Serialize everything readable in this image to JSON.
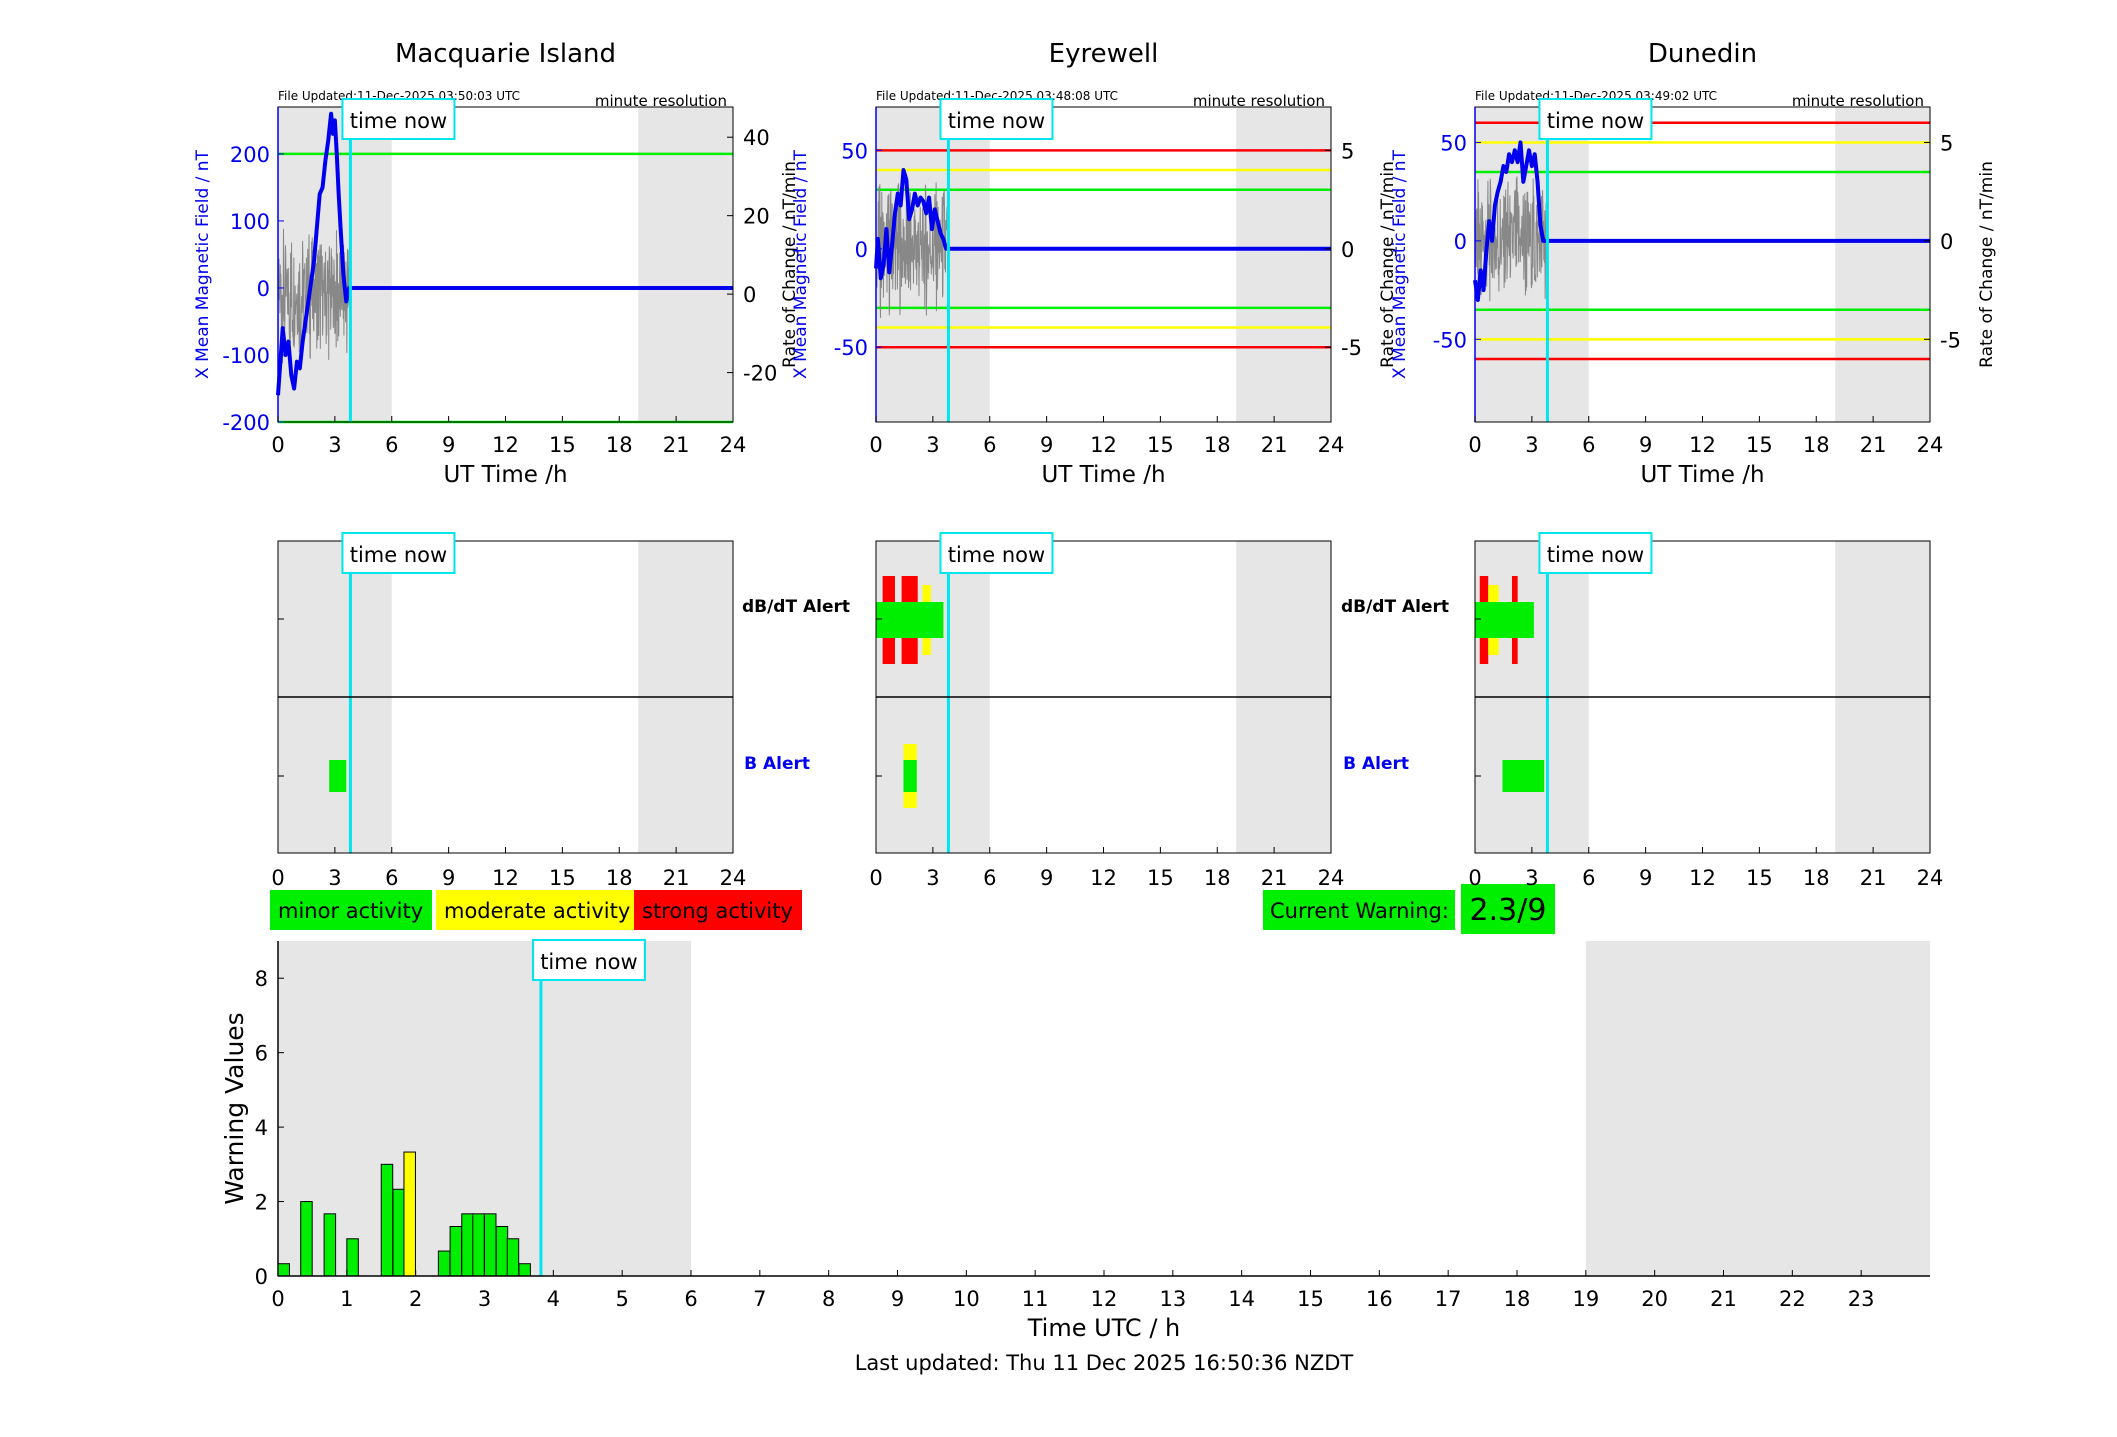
{
  "colors": {
    "green": "#00ee00",
    "yellow": "#ffff00",
    "red": "#ff0000",
    "blue": "#0000ee",
    "cyan": "#00e5ee",
    "shade": "#e6e6e6"
  },
  "time_now_label": "time now",
  "time_now_hour": 3.82,
  "shading": {
    "night_end": 6,
    "night_start": 19
  },
  "stations": [
    {
      "id": "macquarie",
      "title": "Macquarie Island",
      "file_updated": "File Updated:11-Dec-2025 03:50:03 UTC",
      "resolution": "minute resolution",
      "ylabel_left": "X Mean Magnetic Field / nT",
      "ylabel_right": "Rate of Change / nT/min",
      "xlabel": "UT Time /h",
      "left_ticks": [
        "200",
        "100",
        "0",
        "-100",
        "-200"
      ],
      "right_ticks": [
        "40",
        "20",
        "0",
        "-20"
      ],
      "x_ticks": [
        "0",
        "3",
        "6",
        "9",
        "12",
        "15",
        "18",
        "21",
        "24"
      ],
      "alerts": {
        "dbdt": [],
        "b": [
          {
            "t0": 2.7,
            "t1": 3.6,
            "color": "green"
          }
        ]
      }
    },
    {
      "id": "eyrewell",
      "title": "Eyrewell",
      "file_updated": "File Updated:11-Dec-2025 03:48:08 UTC",
      "resolution": "minute resolution",
      "ylabel_left": "X Mean Magnetic Field / nT",
      "ylabel_right": "Rate of Change / nT/min",
      "xlabel": "UT Time /h",
      "left_ticks": [
        "50",
        "0",
        "-50"
      ],
      "right_ticks": [
        "5",
        "0",
        "-5"
      ],
      "x_ticks": [
        "0",
        "3",
        "6",
        "9",
        "12",
        "15",
        "18",
        "21",
        "24"
      ],
      "alerts": {
        "dbdt": [
          {
            "t0": 0.35,
            "t1": 1.0,
            "color": "red"
          },
          {
            "t0": 1.35,
            "t1": 2.2,
            "color": "red"
          },
          {
            "t0": 2.45,
            "t1": 2.9,
            "color": "yellow"
          },
          {
            "t0": 3.15,
            "t1": 3.55,
            "color": "green"
          }
        ],
        "b": [
          {
            "t0": 1.45,
            "t1": 2.15,
            "color": "yellow"
          }
        ]
      }
    },
    {
      "id": "dunedin",
      "title": "Dunedin",
      "file_updated": "File Updated:11-Dec-2025 03:49:02 UTC",
      "resolution": "minute resolution",
      "ylabel_left": "X Mean Magnetic Field / nT",
      "ylabel_right": "Rate of Change / nT/min",
      "xlabel": "UT Time /h",
      "left_ticks": [
        "50",
        "0",
        "-50"
      ],
      "right_ticks": [
        "5",
        "0",
        "-5"
      ],
      "x_ticks": [
        "0",
        "3",
        "6",
        "9",
        "12",
        "15",
        "18",
        "21",
        "24"
      ],
      "alerts": {
        "dbdt": [
          {
            "t0": 0.25,
            "t1": 0.7,
            "color": "red"
          },
          {
            "t0": 0.7,
            "t1": 1.25,
            "color": "yellow"
          },
          {
            "t0": 1.25,
            "t1": 1.95,
            "color": "green"
          },
          {
            "t0": 1.95,
            "t1": 2.25,
            "color": "red"
          },
          {
            "t0": 2.5,
            "t1": 3.1,
            "color": "green"
          }
        ],
        "b": [
          {
            "t0": 1.45,
            "t1": 3.65,
            "color": "green"
          }
        ]
      }
    }
  ],
  "alert_labels": {
    "dbdt": "dB/dT Alert",
    "b": "B Alert"
  },
  "legend": [
    {
      "label": "minor activity",
      "color": "green"
    },
    {
      "label": "moderate activity",
      "color": "yellow"
    },
    {
      "label": "strong activity",
      "color": "red"
    }
  ],
  "current_warning": {
    "label": "Current Warning:",
    "value": "2.3/9"
  },
  "chart_data": {
    "type": "bar",
    "ylabel": "Warning Values",
    "xlabel": "Time UTC / h",
    "ylim": [
      0,
      9
    ],
    "xlim": [
      0,
      24
    ],
    "y_ticks": [
      "0",
      "2",
      "4",
      "6",
      "8"
    ],
    "x_ticks": [
      "0",
      "1",
      "2",
      "3",
      "4",
      "5",
      "6",
      "7",
      "8",
      "9",
      "10",
      "11",
      "12",
      "13",
      "14",
      "15",
      "16",
      "17",
      "18",
      "19",
      "20",
      "21",
      "22",
      "23"
    ],
    "bar_width_h": 0.1667,
    "bars": [
      {
        "t": 0.0,
        "value": 0.33,
        "color": "green"
      },
      {
        "t": 0.33,
        "value": 2.0,
        "color": "green"
      },
      {
        "t": 0.67,
        "value": 1.67,
        "color": "green"
      },
      {
        "t": 1.0,
        "value": 1.0,
        "color": "green"
      },
      {
        "t": 1.5,
        "value": 3.0,
        "color": "green"
      },
      {
        "t": 1.67,
        "value": 2.33,
        "color": "green"
      },
      {
        "t": 1.83,
        "value": 3.33,
        "color": "yellow"
      },
      {
        "t": 2.33,
        "value": 0.67,
        "color": "green"
      },
      {
        "t": 2.5,
        "value": 1.33,
        "color": "green"
      },
      {
        "t": 2.67,
        "value": 1.67,
        "color": "green"
      },
      {
        "t": 2.83,
        "value": 1.67,
        "color": "green"
      },
      {
        "t": 3.0,
        "value": 1.67,
        "color": "green"
      },
      {
        "t": 3.17,
        "value": 1.33,
        "color": "green"
      },
      {
        "t": 3.33,
        "value": 1.0,
        "color": "green"
      },
      {
        "t": 3.5,
        "value": 0.33,
        "color": "green"
      }
    ]
  },
  "last_updated": "Last updated: Thu 11 Dec 2025 16:50:36 NZDT"
}
